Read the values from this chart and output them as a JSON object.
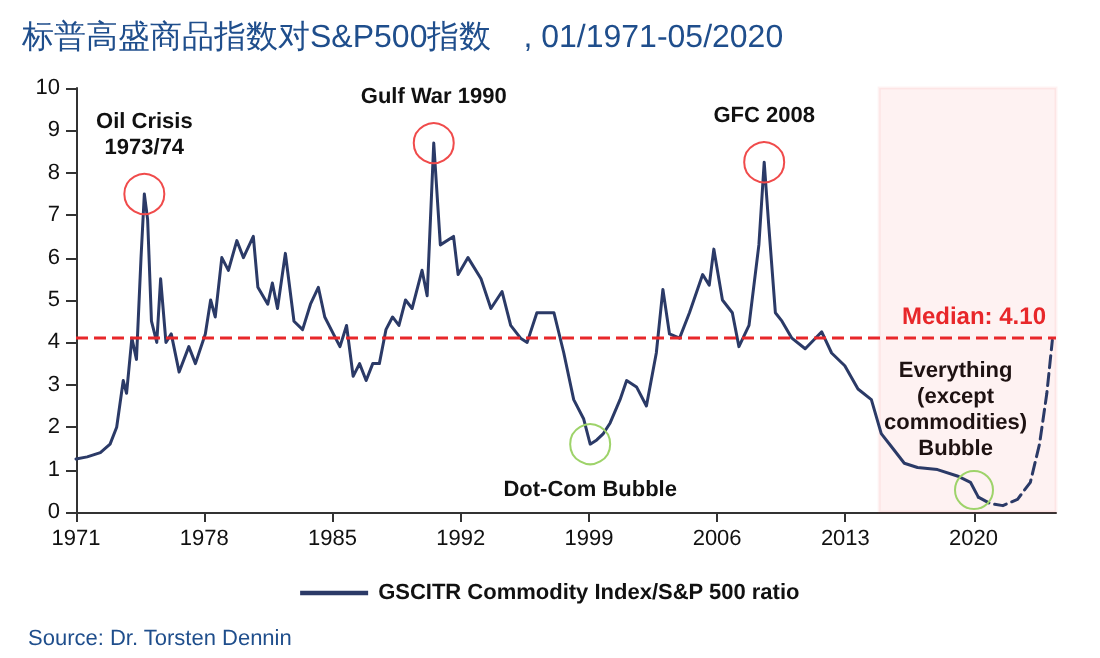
{
  "chart_data": {
    "type": "line",
    "title": "标普高盛商品指数对S&P500指数　, 01/1971-05/2020",
    "xlim": [
      1971,
      2024.5
    ],
    "xticks": [
      1971,
      1978,
      1985,
      1992,
      1999,
      2006,
      2013,
      2020
    ],
    "ylim": [
      0,
      10
    ],
    "yticks": [
      0,
      1,
      2,
      3,
      4,
      5,
      6,
      7,
      8,
      9,
      10
    ],
    "grid": false,
    "legend": "bottom",
    "marker": "none",
    "series": [
      {
        "name": "GSCITR Commodity Index/S&P 500 ratio",
        "color": "#2b3a67",
        "line_style": "solid",
        "x": [
          1971.0,
          1971.61,
          1972.33,
          1972.86,
          1973.22,
          1973.58,
          1973.76,
          1974.05,
          1974.3,
          1974.55,
          1974.73,
          1974.91,
          1975.12,
          1975.41,
          1975.62,
          1975.91,
          1976.2,
          1976.63,
          1977.16,
          1977.52,
          1978.06,
          1978.35,
          1978.6,
          1978.96,
          1979.32,
          1979.78,
          1980.14,
          1980.68,
          1980.93,
          1981.47,
          1981.72,
          1982.0,
          1982.43,
          1982.9,
          1983.37,
          1983.8,
          1984.23,
          1984.58,
          1985.05,
          1985.41,
          1985.77,
          1986.13,
          1986.48,
          1986.84,
          1987.2,
          1987.56,
          1987.92,
          1988.28,
          1988.63,
          1988.99,
          1989.35,
          1989.89,
          1990.17,
          1990.53,
          1990.89,
          1991.61,
          1991.86,
          1992.4,
          1993.11,
          1993.65,
          1994.26,
          1994.73,
          1995.27,
          1995.63,
          1996.16,
          1997.09,
          1997.63,
          1998.17,
          1998.71,
          1999.07,
          1999.43,
          1999.79,
          2000.16,
          2000.7,
          2001.06,
          2001.6,
          2002.14,
          2002.68,
          2003.04,
          2003.4,
          2003.95,
          2004.49,
          2005.21,
          2005.57,
          2005.82,
          2006.29,
          2006.83,
          2007.19,
          2007.74,
          2008.28,
          2008.57,
          2008.82,
          2009.18,
          2009.54,
          2010.08,
          2010.81,
          2011.71,
          2012.25,
          2012.97,
          2013.69,
          2014.42,
          2014.96,
          2015.5,
          2016.22,
          2016.94,
          2018.03,
          2019.11,
          2019.83,
          2020.26
        ],
        "values": [
          1.25,
          1.3,
          1.4,
          1.6,
          2.0,
          3.1,
          2.8,
          4.1,
          3.6,
          6.0,
          7.5,
          6.9,
          4.5,
          4.0,
          5.5,
          4.0,
          4.2,
          3.3,
          3.9,
          3.5,
          4.2,
          5.0,
          4.6,
          6.0,
          5.7,
          6.4,
          6.0,
          6.5,
          5.3,
          4.9,
          5.4,
          4.8,
          6.1,
          4.5,
          4.3,
          4.9,
          5.3,
          4.6,
          4.2,
          3.9,
          4.4,
          3.2,
          3.5,
          3.1,
          3.5,
          3.5,
          4.3,
          4.6,
          4.4,
          5.0,
          4.8,
          5.7,
          5.1,
          8.7,
          6.3,
          6.5,
          5.6,
          6.0,
          5.5,
          4.8,
          5.2,
          4.4,
          4.1,
          4.0,
          4.7,
          4.7,
          3.75,
          2.65,
          2.2,
          1.6,
          1.7,
          1.85,
          2.1,
          2.65,
          3.1,
          2.95,
          2.5,
          3.75,
          5.25,
          4.2,
          4.1,
          4.7,
          5.6,
          5.35,
          6.2,
          5.0,
          4.7,
          3.9,
          4.4,
          6.3,
          8.25,
          6.75,
          4.7,
          4.5,
          4.1,
          3.85,
          4.25,
          3.75,
          3.45,
          2.9,
          2.65,
          1.85,
          1.55,
          1.15,
          1.05,
          1.0,
          0.85,
          0.7,
          0.35
        ]
      },
      {
        "color": "#2b3a67",
        "line_style": "dashed",
        "x": [
          2020.26,
          2020.9,
          2021.6,
          2022.4,
          2023.1,
          2023.6,
          2024.0,
          2024.3
        ],
        "values": [
          0.35,
          0.2,
          0.15,
          0.3,
          0.7,
          1.6,
          2.8,
          4.05
        ]
      }
    ],
    "ref_lines": [
      {
        "axis": "y",
        "value": 4.1,
        "label": "Median: 4.10",
        "color": "#e8272a",
        "line_style": "dashed"
      }
    ],
    "bands": [
      {
        "axis": "x",
        "from": 2014.85,
        "to": 2024.5,
        "color": "#e8272a"
      }
    ],
    "annotations": [
      {
        "text": "Oil Crisis\n1973/74",
        "x": 1974.73,
        "y": 7.5
      },
      {
        "text": "Gulf War 1990",
        "x": 1990.53,
        "y": 8.7
      },
      {
        "text": "GFC 2008",
        "x": 2008.57,
        "y": 8.25
      },
      {
        "text": "Dot-Com Bubble",
        "x": 1999.07,
        "y": 1.6
      },
      "Everything\n(except\ncommodities)\nBubble",
      "Source: Dr. Torsten Dennin"
    ]
  }
}
